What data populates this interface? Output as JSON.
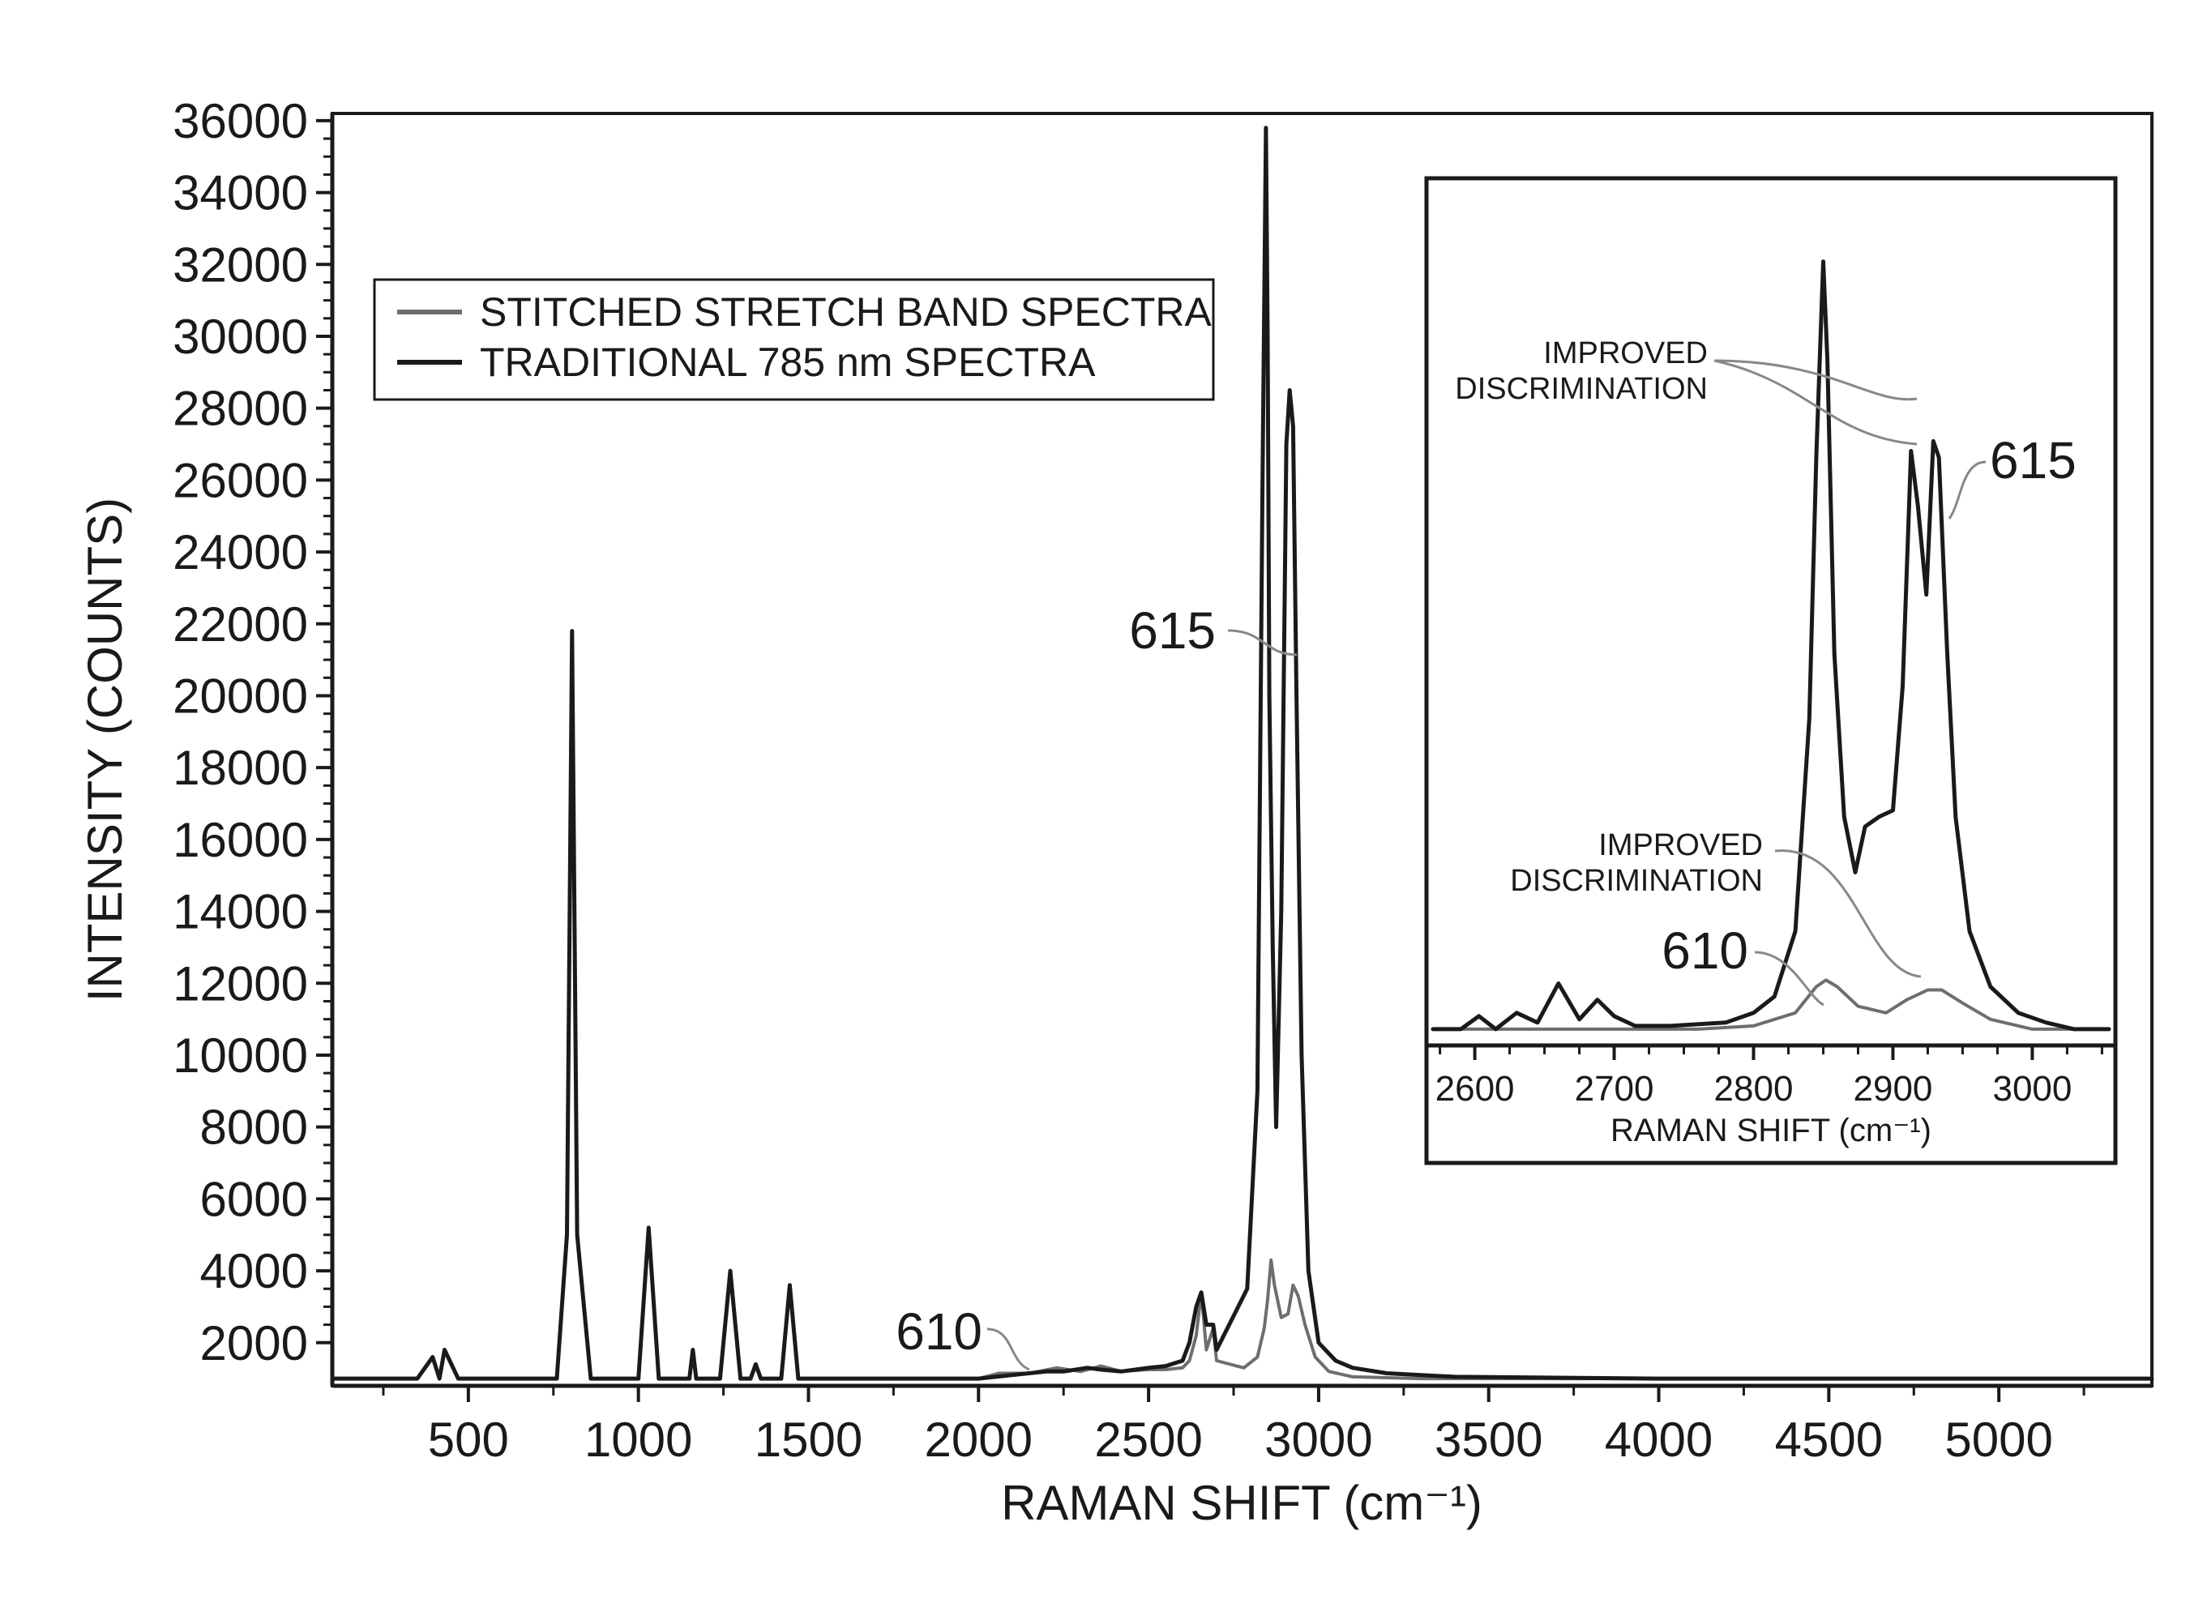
{
  "chart_data": [
    {
      "type": "line",
      "xlabel": "RAMAN SHIFT (cm⁻¹)",
      "ylabel": "INTENSITY (COUNTS)",
      "xlim": [
        100,
        5450
      ],
      "ylim": [
        800,
        36200
      ],
      "x_ticks": [
        500,
        1000,
        1500,
        2000,
        2500,
        3000,
        3500,
        4000,
        4500,
        5000
      ],
      "x_tick_labels": [
        "500",
        "1000",
        "1500",
        "2000",
        "2500",
        "3000",
        "3500",
        "4000",
        "4500",
        "5000"
      ],
      "y_ticks": [
        2000,
        4000,
        6000,
        8000,
        10000,
        12000,
        14000,
        16000,
        18000,
        20000,
        22000,
        24000,
        26000,
        28000,
        30000,
        32000,
        34000,
        36000
      ],
      "y_tick_labels": [
        "2000",
        "4000",
        "6000",
        "8000",
        "10000",
        "12000",
        "14000",
        "16000",
        "18000",
        "20000",
        "22000",
        "24000",
        "26000",
        "28000",
        "30000",
        "32000",
        "34000",
        "36000"
      ],
      "grid": false,
      "legend_position": "top-left",
      "series": [
        {
          "name": "STITCHED STRETCH BAND SPECTRA",
          "color": "#6e6e6e",
          "x": [
            100,
            350,
            395,
            415,
            430,
            470,
            760,
            790,
            805,
            820,
            860,
            1000,
            1030,
            1060,
            1150,
            1160,
            1170,
            1240,
            1270,
            1300,
            1330,
            1345,
            1360,
            1420,
            1445,
            1470,
            1600,
            2000,
            2060,
            2150,
            2230,
            2300,
            2360,
            2420,
            2500,
            2550,
            2600,
            2620,
            2640,
            2655,
            2670,
            2690,
            2700,
            2780,
            2820,
            2840,
            2850,
            2860,
            2870,
            2890,
            2910,
            2925,
            2940,
            2960,
            2990,
            3030,
            3100,
            3300,
            3600,
            4000,
            4500,
            5000,
            5450
          ],
          "y": [
            1000,
            1000,
            1600,
            1000,
            1800,
            1000,
            1000,
            5000,
            21800,
            5000,
            1000,
            1000,
            5200,
            1000,
            1000,
            1800,
            1000,
            1000,
            4000,
            1000,
            1000,
            1400,
            1000,
            1000,
            3600,
            1000,
            1000,
            1000,
            1150,
            1150,
            1300,
            1200,
            1350,
            1200,
            1250,
            1250,
            1300,
            1500,
            2200,
            3400,
            1800,
            2400,
            1500,
            1300,
            1600,
            2400,
            3200,
            4300,
            3600,
            2700,
            2800,
            3600,
            3300,
            2500,
            1600,
            1200,
            1050,
            1000,
            1000,
            1000,
            1000,
            1000,
            1000
          ]
        },
        {
          "name": "TRADITIONAL 785 nm SPECTRA",
          "color": "#1a1a1a",
          "x": [
            100,
            350,
            395,
            415,
            430,
            470,
            760,
            790,
            805,
            820,
            860,
            1000,
            1030,
            1060,
            1150,
            1160,
            1170,
            1240,
            1270,
            1300,
            1330,
            1345,
            1360,
            1420,
            1445,
            1470,
            1600,
            2000,
            2100,
            2200,
            2250,
            2320,
            2360,
            2420,
            2500,
            2550,
            2600,
            2620,
            2640,
            2655,
            2670,
            2690,
            2700,
            2790,
            2820,
            2835,
            2845,
            2850,
            2855,
            2865,
            2875,
            2890,
            2905,
            2915,
            2925,
            2935,
            2950,
            2970,
            3000,
            3050,
            3100,
            3200,
            3400,
            4000,
            4500,
            5000,
            5450
          ],
          "y": [
            1000,
            1000,
            1600,
            1000,
            1800,
            1000,
            1000,
            5000,
            21800,
            5000,
            1000,
            1000,
            5200,
            1000,
            1000,
            1800,
            1000,
            1000,
            4000,
            1000,
            1000,
            1400,
            1000,
            1000,
            3600,
            1000,
            1000,
            1000,
            1100,
            1200,
            1200,
            1300,
            1250,
            1200,
            1300,
            1350,
            1500,
            2000,
            3000,
            3400,
            2500,
            2500,
            1800,
            3500,
            9000,
            26000,
            35800,
            30000,
            20000,
            13000,
            8000,
            14000,
            27000,
            28500,
            27500,
            20000,
            10000,
            4000,
            2000,
            1500,
            1300,
            1150,
            1050,
            1000,
            1000,
            1000,
            1000
          ]
        }
      ],
      "annotations": [
        {
          "text": "615",
          "x": 2860,
          "y": 21200
        },
        {
          "text": "610",
          "x": 2110,
          "y": 1300
        }
      ]
    },
    {
      "type": "line",
      "panel": "inset",
      "xlabel": "RAMAN SHIFT (cm⁻¹)",
      "xlim": [
        2570,
        3055
      ],
      "ylim": [
        10200,
        36300
      ],
      "x_ticks": [
        2600,
        2700,
        2800,
        2900,
        3000
      ],
      "x_tick_labels": [
        "2600",
        "2700",
        "2800",
        "2900",
        "3000"
      ],
      "series": [
        {
          "name": "STITCHED STRETCH BAND SPECTRA",
          "color": "#6e6e6e",
          "x": [
            2570,
            2600,
            2650,
            2700,
            2760,
            2800,
            2830,
            2845,
            2852,
            2860,
            2875,
            2895,
            2910,
            2925,
            2935,
            2950,
            2970,
            3000,
            3055
          ],
          "y": [
            10500,
            10500,
            10500,
            10500,
            10500,
            10600,
            11000,
            11800,
            12000,
            11800,
            11200,
            11000,
            11400,
            11700,
            11700,
            11300,
            10800,
            10500,
            10500
          ]
        },
        {
          "name": "TRADITIONAL 785 nm SPECTRA",
          "color": "#1a1a1a",
          "x": [
            2570,
            2590,
            2603,
            2615,
            2630,
            2645,
            2660,
            2675,
            2688,
            2700,
            2715,
            2740,
            2780,
            2800,
            2815,
            2830,
            2840,
            2845,
            2850,
            2853,
            2858,
            2865,
            2873,
            2880,
            2890,
            2900,
            2907,
            2913,
            2918,
            2924,
            2929,
            2933,
            2939,
            2945,
            2955,
            2970,
            2990,
            3010,
            3030,
            3055
          ],
          "y": [
            10500,
            10500,
            10900,
            10500,
            11000,
            10700,
            11900,
            10800,
            11400,
            10900,
            10600,
            10600,
            10700,
            11000,
            11500,
            13500,
            20000,
            28000,
            34000,
            31000,
            22000,
            17000,
            15300,
            16700,
            17000,
            17200,
            21000,
            28200,
            26500,
            23800,
            28500,
            28000,
            22000,
            17000,
            13500,
            11800,
            11000,
            10700,
            10500,
            10500
          ]
        }
      ],
      "annotations": [
        {
          "text": "615",
          "x": 2980,
          "y": 27000
        },
        {
          "text": "610",
          "x": 2780,
          "y": 12100
        },
        {
          "text": "IMPROVED DISCRIMINATION",
          "x": 2710,
          "y": 30000
        },
        {
          "text": "IMPROVED DISCRIMINATION",
          "x": 2750,
          "y": 15800
        }
      ]
    }
  ],
  "legend": {
    "items": [
      {
        "label": "STITCHED STRETCH BAND SPECTRA",
        "color": "#6e6e6e"
      },
      {
        "label": "TRADITIONAL 785 nm SPECTRA",
        "color": "#1a1a1a"
      }
    ]
  },
  "main_labels": {
    "xlabel": "RAMAN SHIFT (cm⁻¹)",
    "ylabel": "INTENSITY (COUNTS)",
    "ann_615": "615",
    "ann_610": "610"
  },
  "inset_labels": {
    "xlabel": "RAMAN SHIFT (cm⁻¹)",
    "ann_615": "615",
    "ann_610": "610",
    "improved_1_line1": "IMPROVED",
    "improved_1_line2": "DISCRIMINATION",
    "improved_2_line1": "IMPROVED",
    "improved_2_line2": "DISCRIMINATION"
  }
}
